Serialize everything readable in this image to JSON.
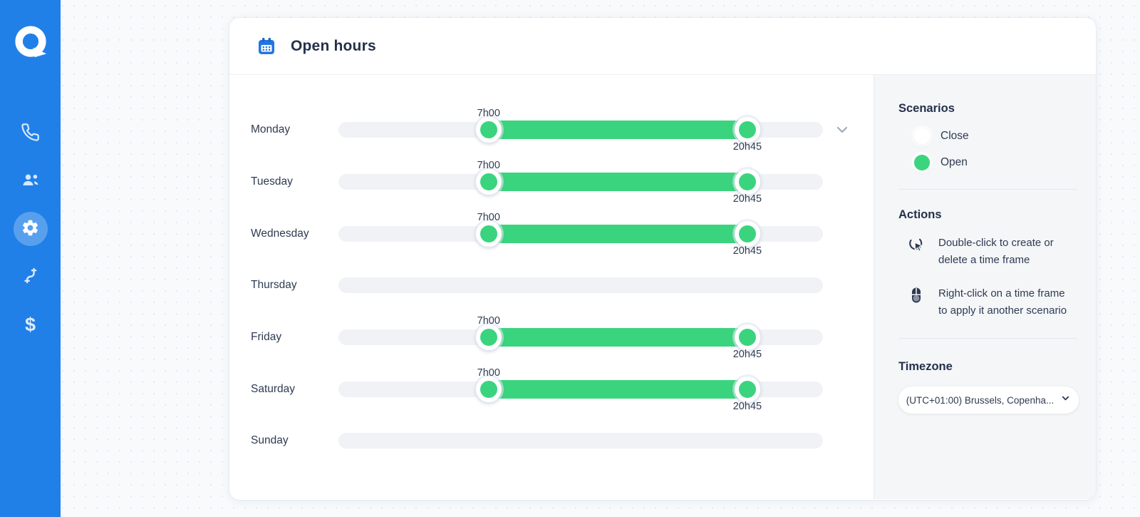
{
  "app": {
    "logo_letter": "Q"
  },
  "colors": {
    "sidebar_blue": "#2080e8",
    "accent_green": "#3bd47e",
    "scenario_close": "#ffffff",
    "panel_gray": "#f4f6f8",
    "track_gray": "#f0f2f6",
    "text_dark": "#2f3b52"
  },
  "sidebar": {
    "items": [
      {
        "icon": "phone-icon",
        "active": false
      },
      {
        "icon": "people-icon",
        "active": false
      },
      {
        "icon": "gear-icon",
        "active": true
      },
      {
        "icon": "cable-icon",
        "active": false
      },
      {
        "icon": "dollar-icon",
        "active": false,
        "glyph": "$"
      }
    ]
  },
  "header": {
    "icon": "calendar-icon",
    "title": "Open hours"
  },
  "schedule": {
    "days": [
      {
        "label": "Monday",
        "open": true,
        "start_label": "7h00",
        "end_label": "20h45",
        "start_pct": 31,
        "end_pct": 84.4,
        "chevron": true
      },
      {
        "label": "Tuesday",
        "open": true,
        "start_label": "7h00",
        "end_label": "20h45",
        "start_pct": 31,
        "end_pct": 84.4,
        "chevron": false
      },
      {
        "label": "Wednesday",
        "open": true,
        "start_label": "7h00",
        "end_label": "20h45",
        "start_pct": 31,
        "end_pct": 84.4,
        "chevron": false
      },
      {
        "label": "Thursday",
        "open": false,
        "chevron": false
      },
      {
        "label": "Friday",
        "open": true,
        "start_label": "7h00",
        "end_label": "20h45",
        "start_pct": 31,
        "end_pct": 84.4,
        "chevron": false
      },
      {
        "label": "Saturday",
        "open": true,
        "start_label": "7h00",
        "end_label": "20h45",
        "start_pct": 31,
        "end_pct": 84.4,
        "chevron": false
      },
      {
        "label": "Sunday",
        "open": false,
        "chevron": false
      }
    ]
  },
  "scenarios": {
    "title": "Scenarios",
    "options": [
      {
        "label": "Close",
        "color": "#ffffff",
        "selected": false
      },
      {
        "label": "Open",
        "color": "#3bd47e",
        "selected": true
      }
    ]
  },
  "actions": {
    "title": "Actions",
    "items": [
      {
        "icon": "double-click-icon",
        "text": "Double-click to create or delete a time frame"
      },
      {
        "icon": "mouse-icon",
        "text": "Right-click on a time frame to apply it another scenario"
      }
    ]
  },
  "timezone": {
    "title": "Timezone",
    "value": "(UTC+01:00) Brussels, Copenha...",
    "icon": "chevron-down-icon"
  }
}
